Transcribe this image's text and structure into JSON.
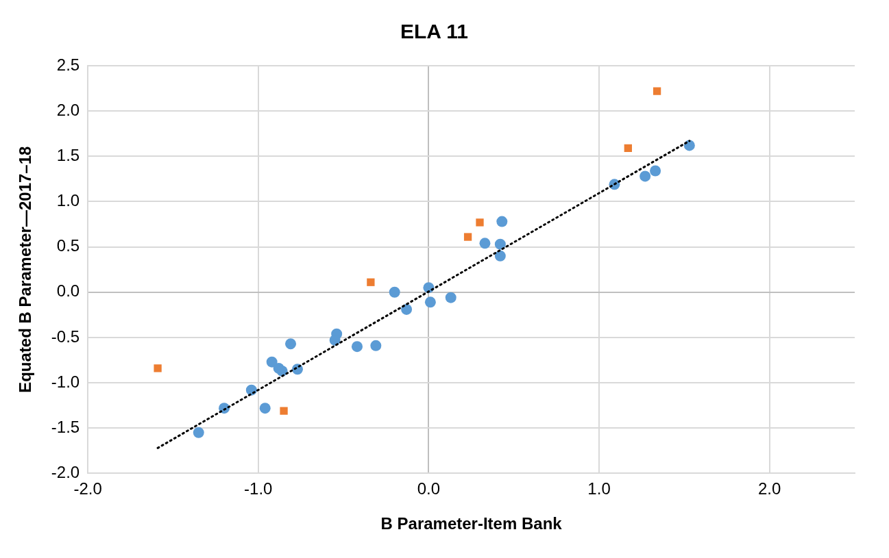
{
  "chart_data": {
    "type": "scatter",
    "title": "ELA 11",
    "xlabel": "B Parameter-Item Bank",
    "ylabel": "Equated B Parameter—2017–18",
    "xlim": [
      -2,
      2.5
    ],
    "xticks": [
      {
        "value": -2,
        "label": "-2.0"
      },
      {
        "value": -1,
        "label": "-1.0"
      },
      {
        "value": 0,
        "label": "0.0"
      },
      {
        "value": 1,
        "label": "1.0"
      },
      {
        "value": 2,
        "label": "2.0"
      }
    ],
    "ylim": [
      -2,
      2.5
    ],
    "yticks": [
      {
        "value": -2,
        "label": "-2.0"
      },
      {
        "value": -1.5,
        "label": "-1.5"
      },
      {
        "value": -1,
        "label": "-1.0"
      },
      {
        "value": -0.5,
        "label": "-0.5"
      },
      {
        "value": 0,
        "label": "0.0"
      },
      {
        "value": 0.5,
        "label": "0.5"
      },
      {
        "value": 1,
        "label": "1.0"
      },
      {
        "value": 1.5,
        "label": "1.5"
      },
      {
        "value": 2,
        "label": "2.0"
      },
      {
        "value": 2.5,
        "label": "2.5"
      }
    ],
    "grid": true,
    "legend": false,
    "series": [
      {
        "type": "scatter",
        "marker": "circle",
        "color": "#5b9bd5",
        "x": [
          -1.35,
          -1.2,
          -1.04,
          -0.96,
          -0.92,
          -0.88,
          -0.86,
          -0.77,
          -0.81,
          -0.54,
          -0.55,
          -0.42,
          -0.31,
          -0.2,
          -0.13,
          0,
          0.01,
          0.13,
          0.33,
          0.42,
          0.42,
          0.43,
          1.09,
          1.27,
          1.33,
          1.53
        ],
        "values": [
          -1.55,
          -1.28,
          -1.08,
          -1.28,
          -0.77,
          -0.84,
          -0.87,
          -0.85,
          -0.57,
          -0.46,
          -0.53,
          -0.6,
          -0.59,
          0,
          -0.19,
          0.05,
          -0.11,
          -0.06,
          0.54,
          0.53,
          0.4,
          0.78,
          1.19,
          1.28,
          1.34,
          1.62
        ]
      },
      {
        "type": "scatter",
        "marker": "square",
        "color": "#ed7d31",
        "x": [
          -1.59,
          -0.85,
          -0.34,
          0.23,
          0.3,
          1.17,
          1.34
        ],
        "values": [
          -0.84,
          -1.31,
          0.11,
          0.61,
          0.77,
          1.59,
          2.22
        ]
      },
      {
        "type": "line",
        "marker": "none",
        "line_style": "dotted",
        "color": "#000000",
        "x": [
          -1.59,
          1.53
        ],
        "values": [
          -1.72,
          1.67
        ]
      }
    ]
  }
}
